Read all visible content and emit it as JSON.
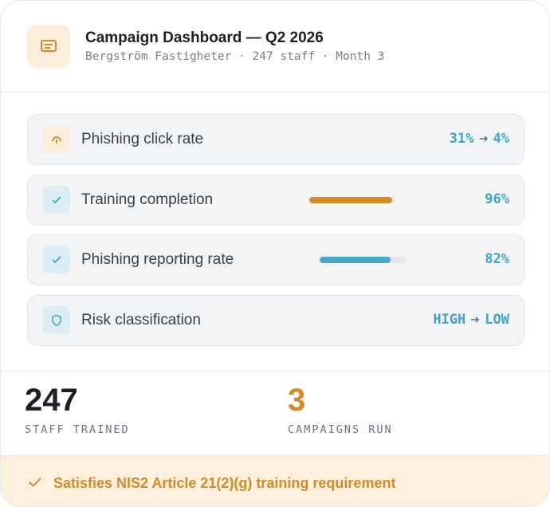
{
  "header": {
    "title": "Campaign Dashboard — Q2 2026",
    "subtitle": "Bergström Fastigheter · 247 staff · Month 3"
  },
  "rows": [
    {
      "label": "Phishing click rate",
      "from": "31%",
      "to": "4%"
    },
    {
      "label": "Training completion",
      "value": 96,
      "value_label": "96%"
    },
    {
      "label": "Phishing reporting rate",
      "value": 82,
      "value_label": "82%"
    },
    {
      "label": "Risk classification",
      "from": "HIGH",
      "to": "LOW"
    }
  ],
  "stats": [
    {
      "value": "247",
      "label": "STAFF TRAINED"
    },
    {
      "value": "3",
      "label": "CAMPAIGNS RUN"
    }
  ],
  "footer": {
    "text": "Satisfies NIS2 Article 21(2)(g) training requirement"
  }
}
